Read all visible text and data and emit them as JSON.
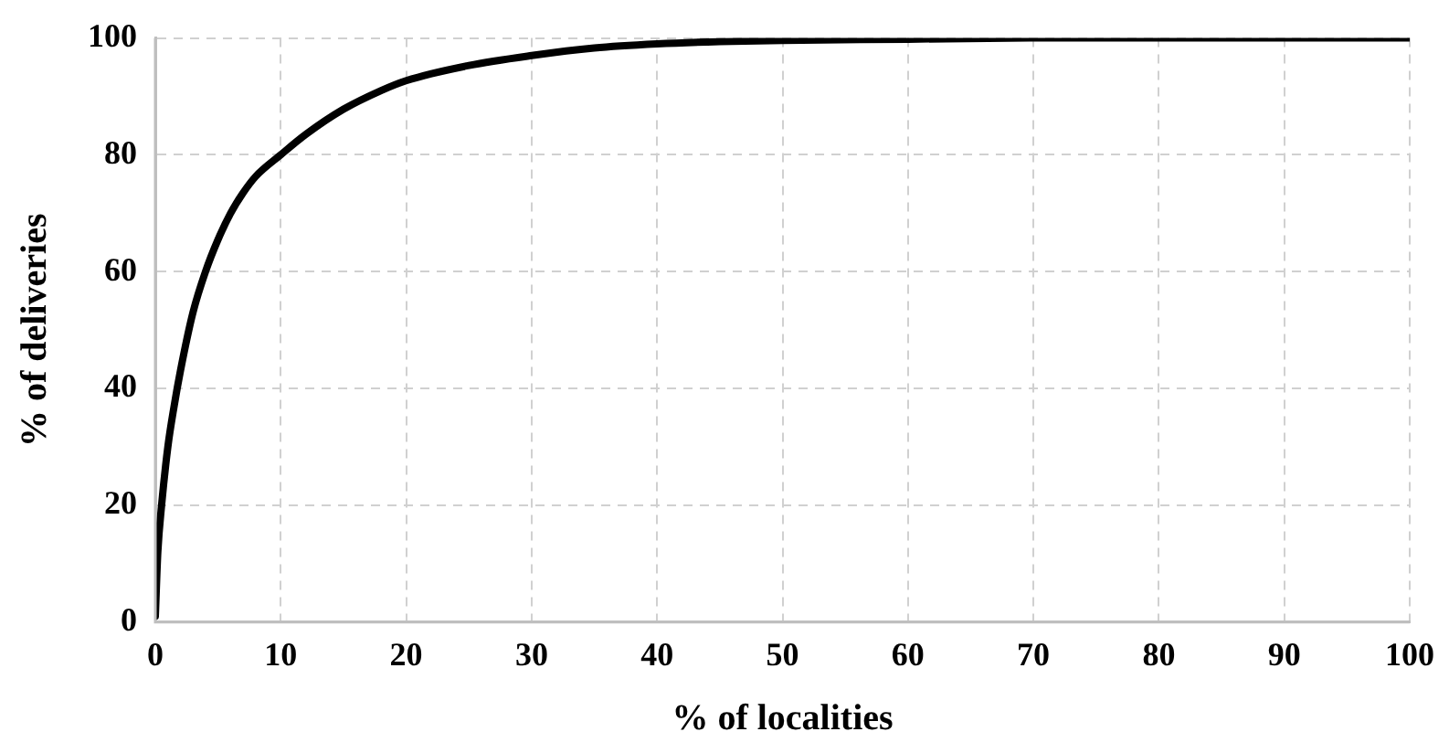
{
  "chart_data": {
    "type": "line",
    "xlabel": "% of localities",
    "ylabel": "% of deliveries",
    "x": [
      0,
      0.2,
      0.5,
      1,
      1.5,
      2,
      3,
      4,
      5,
      6,
      7,
      8,
      10,
      12,
      15,
      18,
      20,
      25,
      30,
      35,
      40,
      45,
      50,
      60,
      70,
      80,
      90,
      100
    ],
    "series": [
      {
        "color": "#000000",
        "values": [
          1,
          12,
          20,
          30,
          37,
          43,
          53,
          60,
          65.5,
          70,
          73.5,
          76.3,
          80,
          83.5,
          87.8,
          91,
          92.7,
          95.3,
          97,
          98.3,
          99,
          99.4,
          99.6,
          99.8,
          100,
          100,
          100,
          100
        ]
      }
    ],
    "xlim": [
      0,
      100
    ],
    "xticks": [
      0,
      10,
      20,
      30,
      40,
      50,
      60,
      70,
      80,
      90,
      100
    ],
    "ylim": [
      0,
      100
    ],
    "yticks": [
      0,
      20,
      40,
      60,
      80,
      100
    ],
    "grid": true,
    "legend": false,
    "marker": "none",
    "line_style": "solid"
  }
}
